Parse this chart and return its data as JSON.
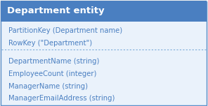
{
  "title": "Department entity",
  "header_bg": "#4a7fc1",
  "body_bg": "#eaf2fb",
  "outer_bg": "#f0f0f0",
  "border_color": "#5b8fc9",
  "divider_color": "#7aaad8",
  "title_color": "#ffffff",
  "text_color": "#4a7fc1",
  "key_rows": [
    "PartitionKey (Department name)",
    "RowKey (\"Department\")"
  ],
  "data_rows": [
    "DepartmentName (string)",
    "EmployeeCount (integer)",
    "ManagerName (string)",
    "ManagerEmailAddress (string)"
  ],
  "title_fontsize": 9.5,
  "row_fontsize": 7.2,
  "figsize": [
    2.96,
    1.52
  ],
  "dpi": 100
}
